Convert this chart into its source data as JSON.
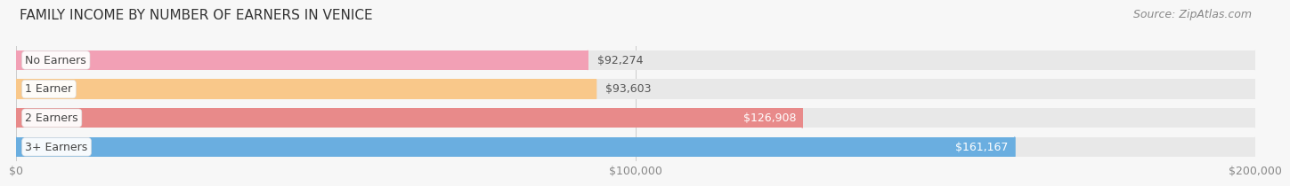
{
  "title": "FAMILY INCOME BY NUMBER OF EARNERS IN VENICE",
  "source": "Source: ZipAtlas.com",
  "categories": [
    "No Earners",
    "1 Earner",
    "2 Earners",
    "3+ Earners"
  ],
  "values": [
    92274,
    93603,
    126908,
    161167
  ],
  "bar_colors": [
    "#f2a0b5",
    "#f9c88a",
    "#e88a8a",
    "#6aaee0"
  ],
  "value_labels": [
    "$92,274",
    "$93,603",
    "$126,908",
    "$161,167"
  ],
  "value_inside": [
    false,
    false,
    true,
    true
  ],
  "xlim": [
    0,
    200000
  ],
  "xticks": [
    0,
    100000,
    200000
  ],
  "xtick_labels": [
    "$0",
    "$100,000",
    "$200,000"
  ],
  "background_color": "#f7f7f7",
  "bar_bg_color": "#e8e8e8",
  "title_fontsize": 11,
  "source_fontsize": 9,
  "label_fontsize": 9,
  "value_fontsize": 9,
  "tick_fontsize": 9
}
